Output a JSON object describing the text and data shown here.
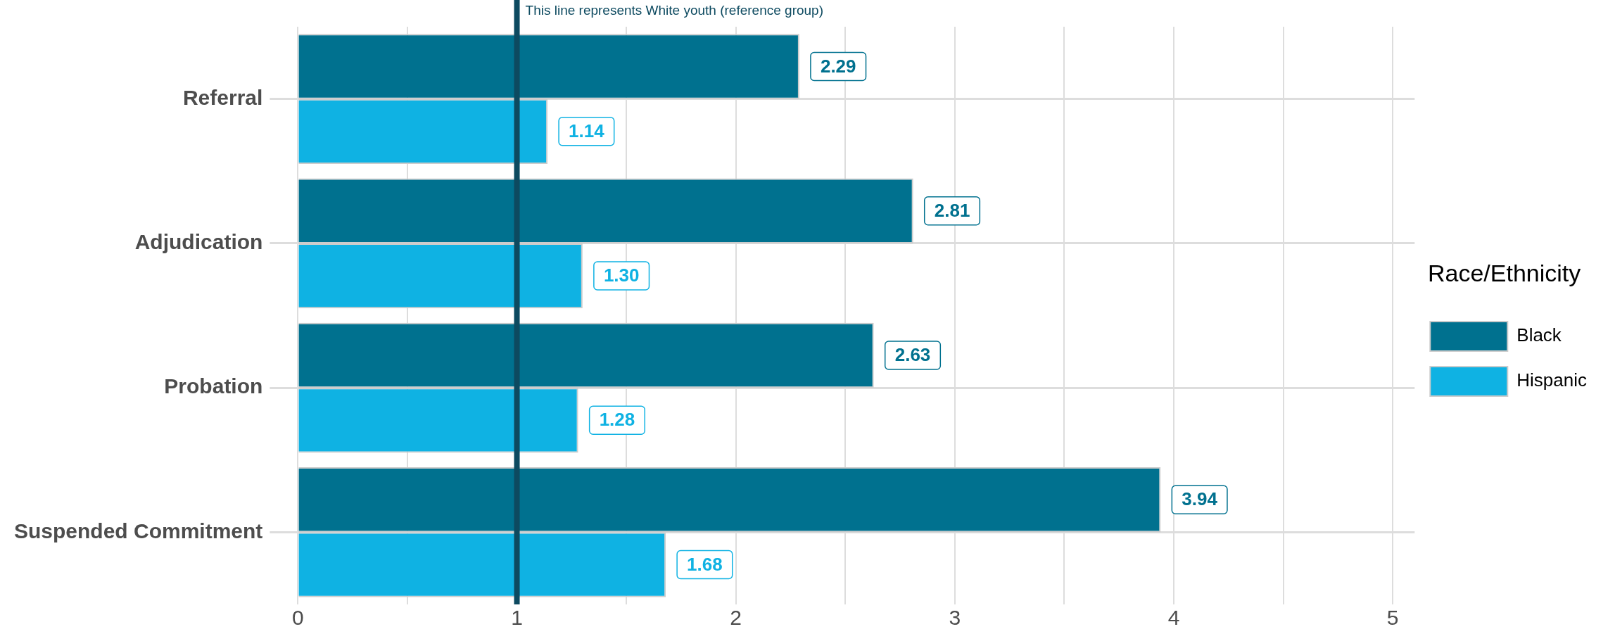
{
  "chart_data": {
    "type": "bar",
    "orientation": "horizontal",
    "categories": [
      "Referral",
      "Adjudication",
      "Probation",
      "Suspended Commitment"
    ],
    "series": [
      {
        "name": "Black",
        "color": "#00718f",
        "values": [
          2.29,
          2.81,
          2.63,
          3.94
        ],
        "value_labels": [
          "2.29",
          "2.81",
          "2.63",
          "3.94"
        ]
      },
      {
        "name": "Hispanic",
        "color": "#0fb2e3",
        "values": [
          1.14,
          1.3,
          1.28,
          1.68
        ],
        "value_labels": [
          "1.14",
          "1.30",
          "1.28",
          "1.68"
        ]
      }
    ],
    "xlim": [
      0,
      5.1
    ],
    "xticks": [
      0,
      {
        "value": 0.5,
        "label": null
      },
      1,
      {
        "value": 1.5,
        "label": null
      },
      2,
      {
        "value": 2.5,
        "label": null
      },
      3,
      {
        "value": 3.5,
        "label": null
      },
      4,
      {
        "value": 4.5,
        "label": null
      },
      5
    ],
    "ref_lines": [
      {
        "axis": "x",
        "value": 1,
        "label": "This line represents White youth (reference group)",
        "color": "#0d4a60"
      }
    ],
    "legend_title": "Race/Ethnicity",
    "legend": "right",
    "grid": true
  }
}
